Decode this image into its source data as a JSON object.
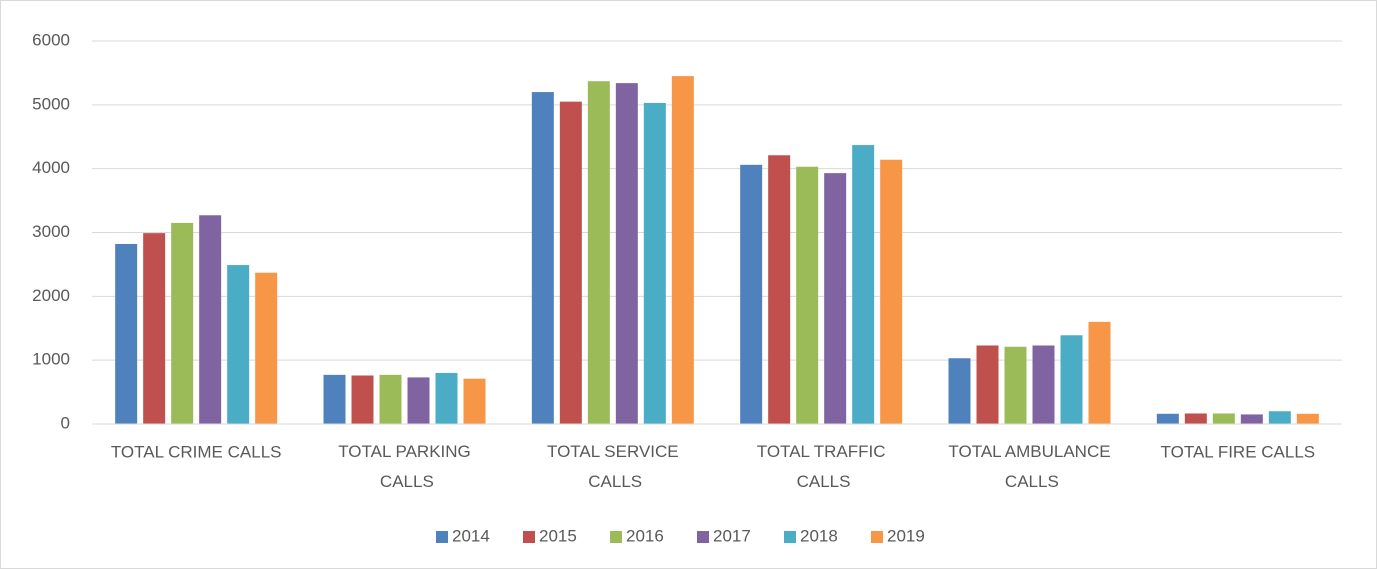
{
  "chart_data": {
    "type": "bar",
    "categories": [
      "TOTAL CRIME CALLS",
      "TOTAL PARKING CALLS",
      "TOTAL SERVICE CALLS",
      "TOTAL TRAFFIC CALLS",
      "TOTAL AMBULANCE CALLS",
      "TOTAL FIRE CALLS"
    ],
    "series": [
      {
        "name": "2014",
        "color": "#4f81bd",
        "values": [
          2820,
          770,
          5200,
          4060,
          1030,
          160
        ]
      },
      {
        "name": "2015",
        "color": "#c0504d",
        "values": [
          2990,
          760,
          5050,
          4210,
          1230,
          165
        ]
      },
      {
        "name": "2016",
        "color": "#9bbb59",
        "values": [
          3150,
          770,
          5370,
          4030,
          1210,
          165
        ]
      },
      {
        "name": "2017",
        "color": "#8064a2",
        "values": [
          3270,
          730,
          5340,
          3930,
          1230,
          150
        ]
      },
      {
        "name": "2018",
        "color": "#4bacc6",
        "values": [
          2490,
          800,
          5030,
          4370,
          1390,
          200
        ]
      },
      {
        "name": "2019",
        "color": "#f79646",
        "values": [
          2370,
          710,
          5450,
          4140,
          1600,
          160
        ]
      }
    ],
    "ylim": [
      0,
      6000
    ],
    "yticks": [
      0,
      1000,
      2000,
      3000,
      4000,
      5000,
      6000
    ],
    "grid": true,
    "legend": "bottom"
  }
}
